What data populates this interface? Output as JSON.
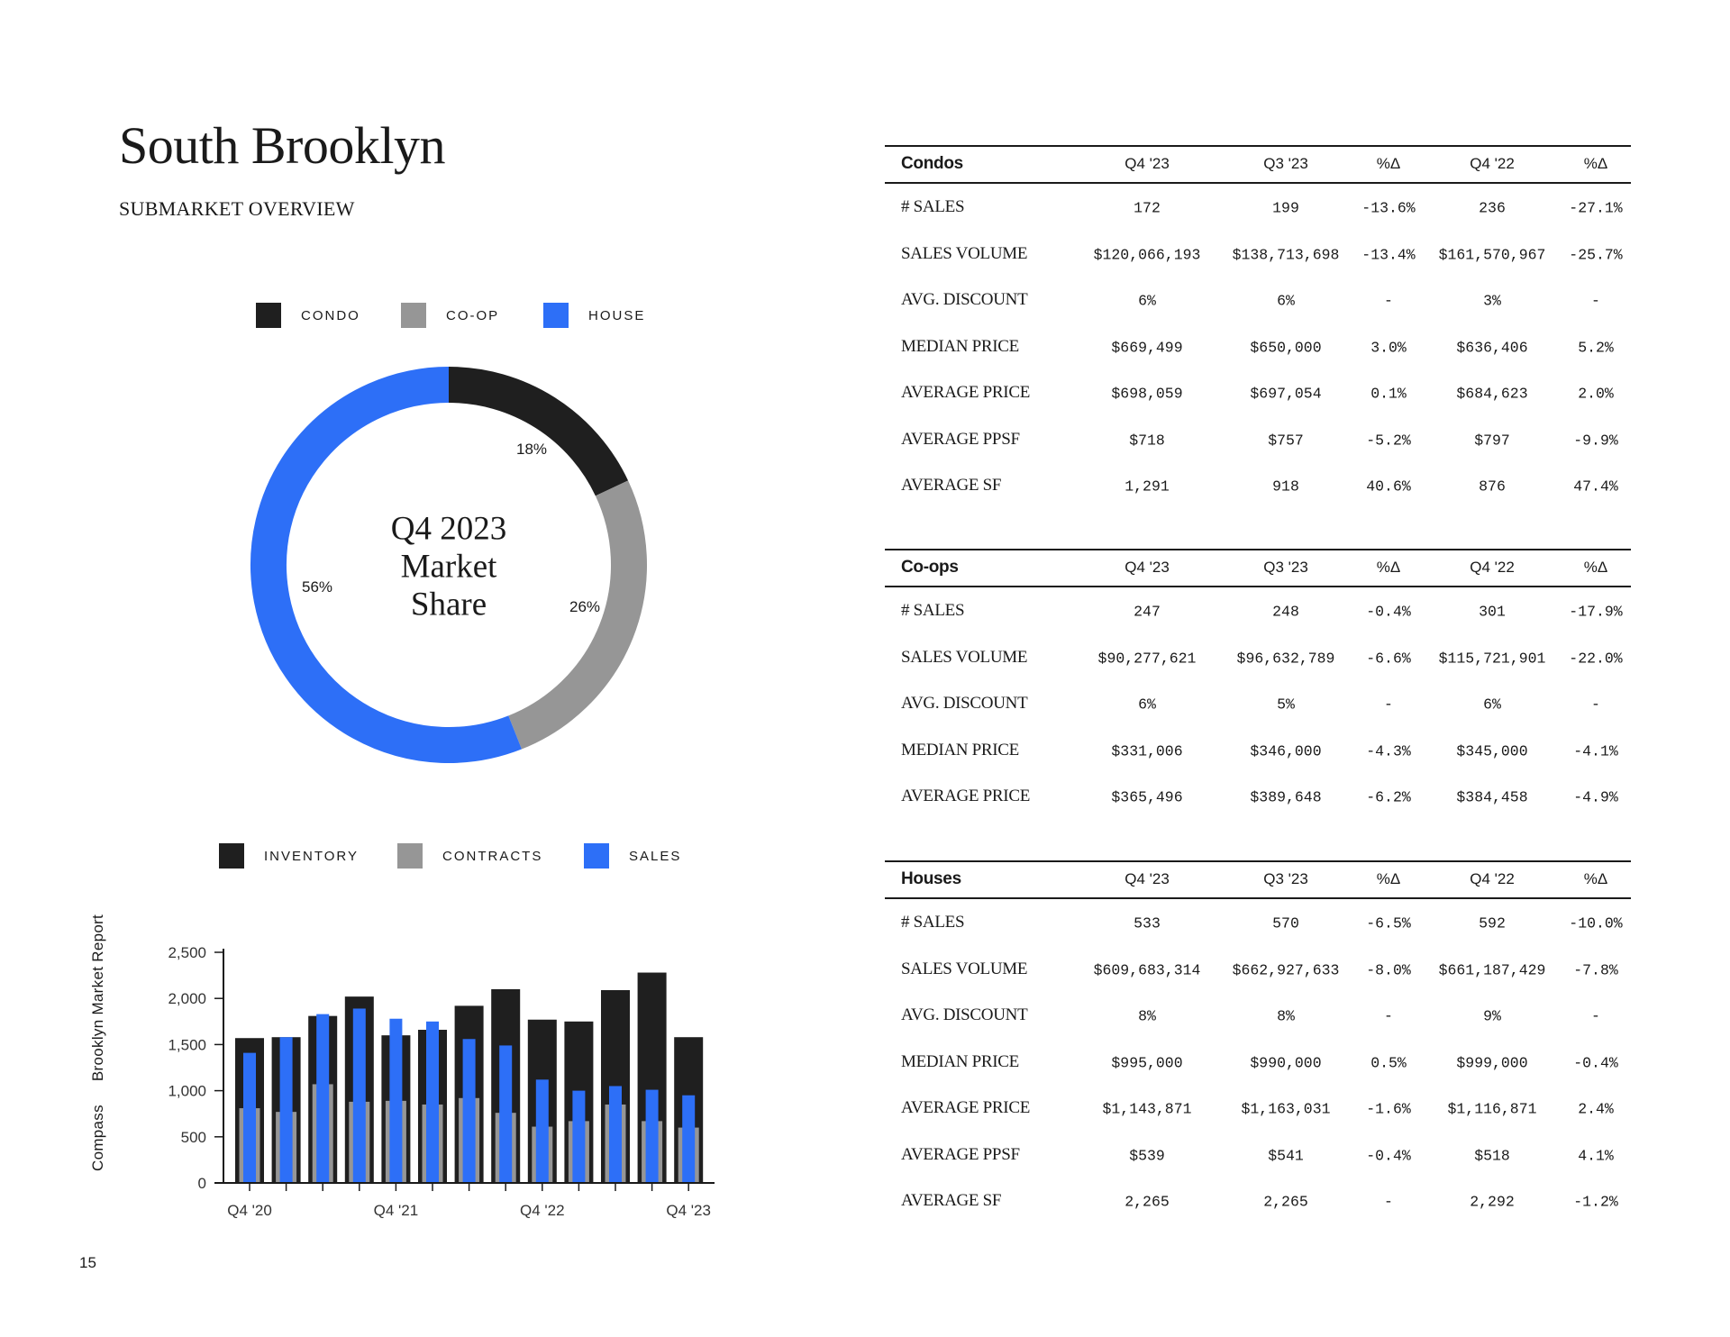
{
  "page": {
    "title": "South Brooklyn",
    "subtitle": "SUBMARKET OVERVIEW",
    "side_text": [
      "Compass",
      "Brooklyn Market Report"
    ],
    "page_number": "15"
  },
  "colors": {
    "condo": "#1f1f1f",
    "coop": "#969696",
    "house": "#2d6ff7",
    "inventory": "#1f1f1f",
    "contracts": "#969696",
    "sales": "#2d6ff7"
  },
  "chart_data": [
    {
      "type": "pie",
      "variant": "donut",
      "title": "Q4 2023 Market Share",
      "center_lines": [
        "Q4 2023",
        "Market",
        "Share"
      ],
      "legend": [
        "CONDO",
        "CO-OP",
        "HOUSE"
      ],
      "legend_position": "top",
      "slices": [
        {
          "name": "CONDO",
          "value": 18,
          "label": "18%"
        },
        {
          "name": "CO-OP",
          "value": 26,
          "label": "26%"
        },
        {
          "name": "HOUSE",
          "value": 56,
          "label": "56%"
        }
      ]
    },
    {
      "type": "bar",
      "legend": [
        "INVENTORY",
        "CONTRACTS",
        "SALES"
      ],
      "legend_position": "top",
      "categories": [
        "Q4 '20",
        "Q1 '21",
        "Q2 '21",
        "Q3 '21",
        "Q4 '21",
        "Q1 '22",
        "Q2 '22",
        "Q3 '22",
        "Q4 '22",
        "Q1 '23",
        "Q2 '23",
        "Q3 '23",
        "Q4 '23"
      ],
      "x_tick_labels": [
        "Q4 '20",
        "",
        "",
        "",
        "Q4 '21",
        "",
        "",
        "",
        "Q4 '22",
        "",
        "",
        "",
        "Q4 '23"
      ],
      "series": [
        {
          "name": "INVENTORY",
          "values": [
            1570,
            1580,
            1810,
            2020,
            1600,
            1660,
            1920,
            2100,
            1770,
            1750,
            2090,
            2280,
            1580
          ]
        },
        {
          "name": "CONTRACTS",
          "values": [
            810,
            770,
            1070,
            880,
            890,
            850,
            920,
            760,
            610,
            670,
            850,
            670,
            600
          ]
        },
        {
          "name": "SALES",
          "values": [
            1410,
            1580,
            1830,
            1890,
            1780,
            1750,
            1560,
            1490,
            1120,
            1000,
            1050,
            1010,
            950
          ]
        }
      ],
      "y_ticks": [
        "0",
        "500",
        "1,000",
        "1,500",
        "2,000",
        "2,500"
      ],
      "ylim": [
        0,
        2500
      ],
      "grid": false
    }
  ],
  "tables": [
    {
      "headers": [
        "Condos",
        "Q4 '23",
        "Q3 '23",
        "%Δ",
        "Q4 '22",
        "%Δ"
      ],
      "rows": [
        [
          "# SALES",
          "172",
          "199",
          "-13.6%",
          "236",
          "-27.1%"
        ],
        [
          "SALES VOLUME",
          "$120,066,193",
          "$138,713,698",
          "-13.4%",
          "$161,570,967",
          "-25.7%"
        ],
        [
          "AVG. DISCOUNT",
          "6%",
          "6%",
          "-",
          "3%",
          "-"
        ],
        [
          "MEDIAN PRICE",
          "$669,499",
          "$650,000",
          "3.0%",
          "$636,406",
          "5.2%"
        ],
        [
          "AVERAGE PRICE",
          "$698,059",
          "$697,054",
          "0.1%",
          "$684,623",
          "2.0%"
        ],
        [
          "AVERAGE PPSF",
          "$718",
          "$757",
          "-5.2%",
          "$797",
          "-9.9%"
        ],
        [
          "AVERAGE SF",
          "1,291",
          "918",
          "40.6%",
          "876",
          "47.4%"
        ]
      ]
    },
    {
      "headers": [
        "Co-ops",
        "Q4 '23",
        "Q3 '23",
        "%Δ",
        "Q4 '22",
        "%Δ"
      ],
      "rows": [
        [
          "# SALES",
          "247",
          "248",
          "-0.4%",
          "301",
          "-17.9%"
        ],
        [
          "SALES VOLUME",
          "$90,277,621",
          "$96,632,789",
          "-6.6%",
          "$115,721,901",
          "-22.0%"
        ],
        [
          "AVG. DISCOUNT",
          "6%",
          "5%",
          "-",
          "6%",
          "-"
        ],
        [
          "MEDIAN PRICE",
          "$331,006",
          "$346,000",
          "-4.3%",
          "$345,000",
          "-4.1%"
        ],
        [
          "AVERAGE PRICE",
          "$365,496",
          "$389,648",
          "-6.2%",
          "$384,458",
          "-4.9%"
        ]
      ]
    },
    {
      "headers": [
        "Houses",
        "Q4 '23",
        "Q3 '23",
        "%Δ",
        "Q4 '22",
        "%Δ"
      ],
      "rows": [
        [
          "# SALES",
          "533",
          "570",
          "-6.5%",
          "592",
          "-10.0%"
        ],
        [
          "SALES VOLUME",
          "$609,683,314",
          "$662,927,633",
          "-8.0%",
          "$661,187,429",
          "-7.8%"
        ],
        [
          "AVG. DISCOUNT",
          "8%",
          "8%",
          "-",
          "9%",
          "-"
        ],
        [
          "MEDIAN PRICE",
          "$995,000",
          "$990,000",
          "0.5%",
          "$999,000",
          "-0.4%"
        ],
        [
          "AVERAGE PRICE",
          "$1,143,871",
          "$1,163,031",
          "-1.6%",
          "$1,116,871",
          "2.4%"
        ],
        [
          "AVERAGE PPSF",
          "$539",
          "$541",
          "-0.4%",
          "$518",
          "4.1%"
        ],
        [
          "AVERAGE SF",
          "2,265",
          "2,265",
          "-",
          "2,292",
          "-1.2%"
        ]
      ]
    }
  ]
}
